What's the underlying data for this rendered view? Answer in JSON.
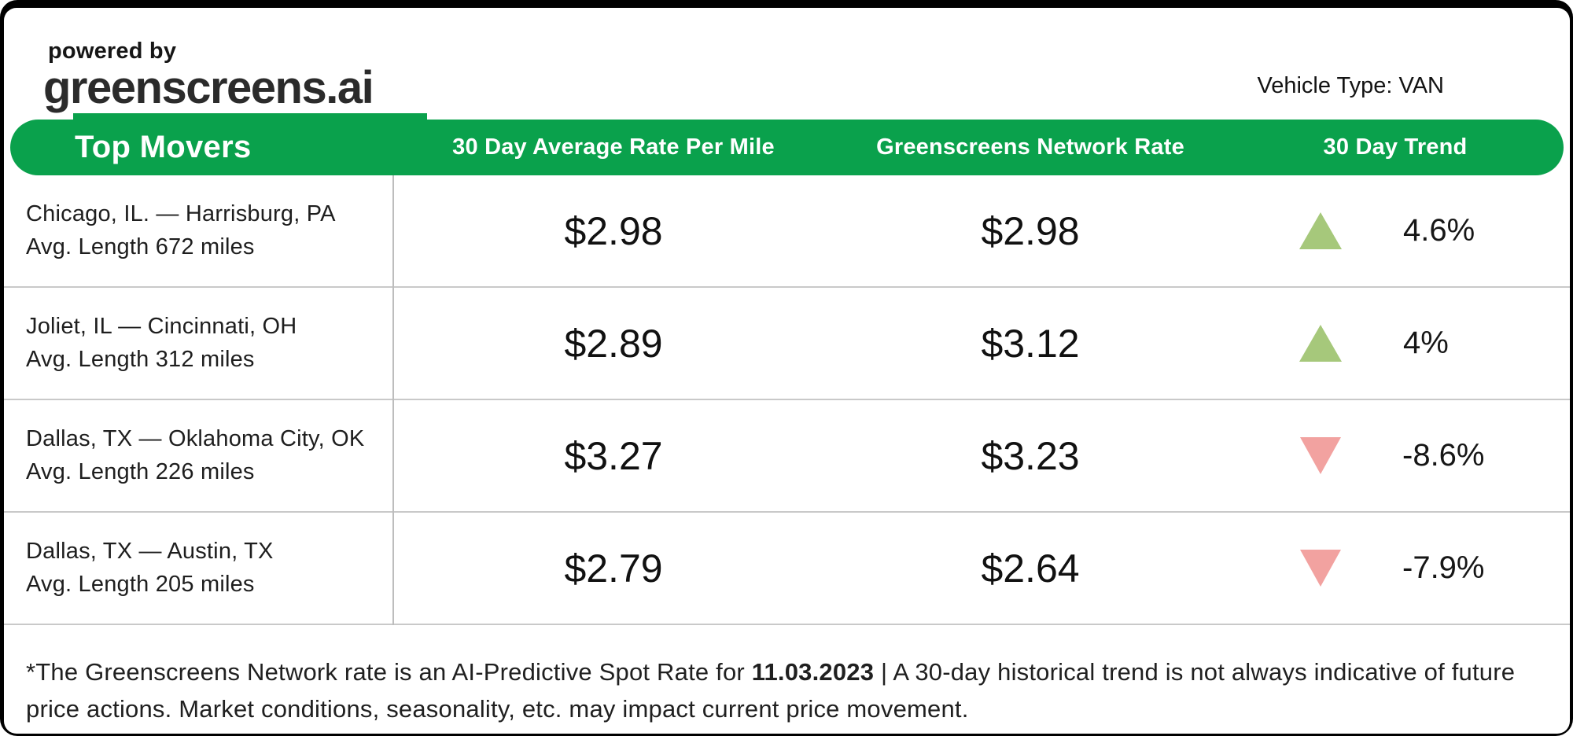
{
  "branding": {
    "powered_by": "powered by",
    "logo": "greenscreens.ai"
  },
  "vehicle_type_label": "Vehicle Type: VAN",
  "table": {
    "title": "Top Movers",
    "columns": [
      "30 Day Average Rate Per Mile",
      "Greenscreens Network Rate",
      "30 Day Trend"
    ],
    "rows": [
      {
        "lane": "Chicago, IL. — Harrisburg, PA",
        "avg_length": "Avg. Length 672  miles",
        "avg_rate": "$2.98",
        "network_rate": "$2.98",
        "trend_direction": "up",
        "trend_pct": "4.6%"
      },
      {
        "lane": "Joliet, IL — Cincinnati, OH",
        "avg_length": "Avg. Length 312 miles",
        "avg_rate": "$2.89",
        "network_rate": "$3.12",
        "trend_direction": "up",
        "trend_pct": "4%"
      },
      {
        "lane": "Dallas, TX — Oklahoma City, OK",
        "avg_length": "Avg. Length 226 miles",
        "avg_rate": "$3.27",
        "network_rate": "$3.23",
        "trend_direction": "down",
        "trend_pct": "-8.6%"
      },
      {
        "lane": "Dallas, TX — Austin, TX",
        "avg_length": "Avg. Length 205 miles",
        "avg_rate": "$2.79",
        "network_rate": "$2.64",
        "trend_direction": "down",
        "trend_pct": "-7.9%"
      }
    ]
  },
  "footnote": {
    "pre": "*The Greenscreens Network rate is an AI-Predictive Spot Rate for ",
    "date": "11.03.2023",
    "post": " | A 30-day historical trend is not always indicative of future price actions. Market conditions, seasonality, etc. may impact current price movement."
  },
  "colors": {
    "brand_green": "#0aa14c",
    "trend_up": "#a6c87b",
    "trend_down": "#f2a2a0"
  }
}
